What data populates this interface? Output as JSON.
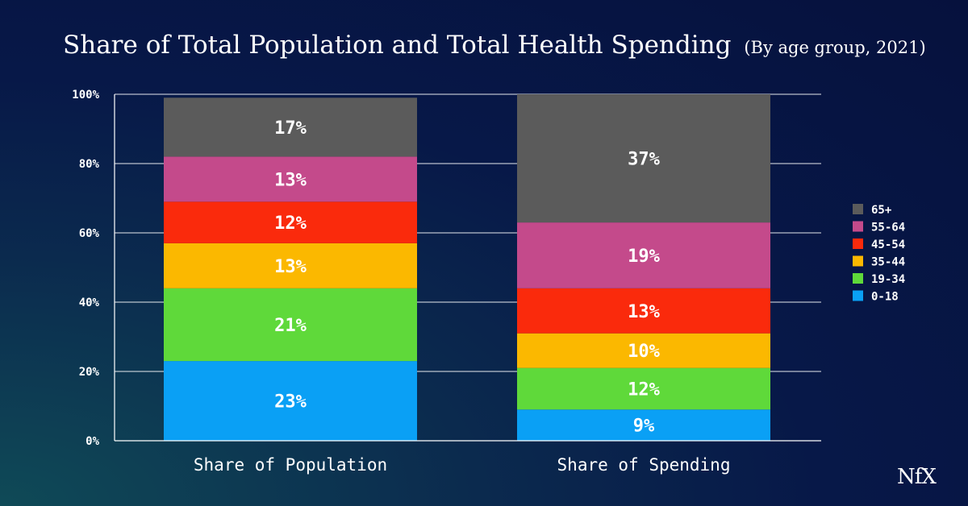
{
  "title": "Share of Total Population and Total Health Spending",
  "subtitle": "(By age group, 2021)",
  "brand": "NfX",
  "chart_data": {
    "type": "bar",
    "stacked": true,
    "categories": [
      "Share of Population",
      "Share of Spending"
    ],
    "series": [
      {
        "name": "0-18",
        "color": "#0aa0f5",
        "values": [
          23,
          9
        ],
        "labels": [
          "23%",
          "9%"
        ]
      },
      {
        "name": "19-34",
        "color": "#5fd93a",
        "values": [
          21,
          12
        ],
        "labels": [
          "21%",
          "12%"
        ]
      },
      {
        "name": "35-44",
        "color": "#fbb800",
        "values": [
          13,
          10
        ],
        "labels": [
          "13%",
          "10%"
        ]
      },
      {
        "name": "45-54",
        "color": "#fa2a0c",
        "values": [
          12,
          13
        ],
        "labels": [
          "12%",
          "13%"
        ]
      },
      {
        "name": "55-64",
        "color": "#c44a8b",
        "values": [
          13,
          19
        ],
        "labels": [
          "13%",
          "19%"
        ]
      },
      {
        "name": "65+",
        "color": "#5b5b5b",
        "values": [
          17,
          37
        ],
        "labels": [
          "17%",
          "37%"
        ]
      }
    ],
    "yticks": [
      "0%",
      "20%",
      "40%",
      "60%",
      "80%",
      "100%"
    ],
    "ylim": [
      0,
      100
    ],
    "grid": true,
    "legend": "right"
  }
}
